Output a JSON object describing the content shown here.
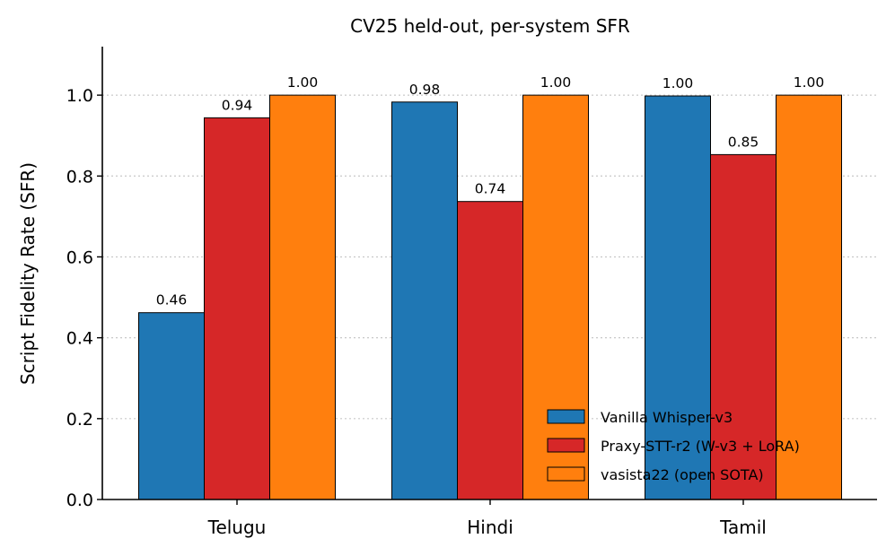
{
  "chart_data": {
    "type": "bar",
    "title": "CV25 held-out, per-system SFR",
    "xlabel": "",
    "ylabel": "Script Fidelity Rate (SFR)",
    "ylim": [
      0,
      1.12
    ],
    "yticks": [
      "0.0",
      "0.2",
      "0.4",
      "0.6",
      "0.8",
      "1.0"
    ],
    "grid": "horizontal dotted",
    "legend_position": "lower-right",
    "categories": [
      "Telugu",
      "Hindi",
      "Tamil"
    ],
    "series": [
      {
        "name": "Vanilla Whisper-v3",
        "color": "#1f77b4",
        "values": [
          0.462,
          0.983,
          0.998
        ],
        "labels": [
          "0.46",
          "0.98",
          "1.00"
        ]
      },
      {
        "name": "Praxy-STT-r2 (W-v3 + LoRA)",
        "color": "#d62728",
        "values": [
          0.944,
          0.737,
          0.853
        ],
        "labels": [
          "0.94",
          "0.74",
          "0.85"
        ]
      },
      {
        "name": "vasista22 (open SOTA)",
        "color": "#ff7f0e",
        "values": [
          1.0,
          1.0,
          1.0
        ],
        "labels": [
          "1.00",
          "1.00",
          "1.00"
        ]
      }
    ]
  }
}
